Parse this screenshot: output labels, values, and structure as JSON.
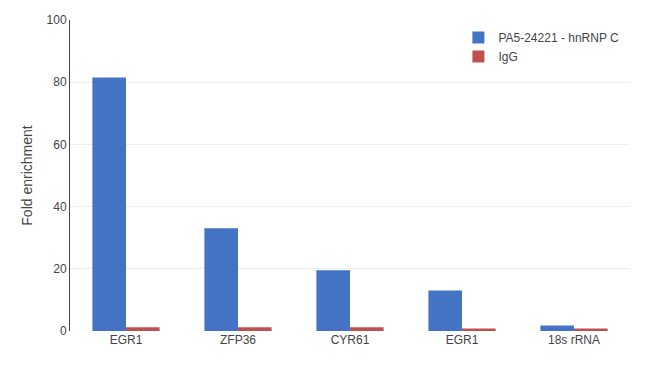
{
  "chart_data": {
    "type": "bar",
    "ylabel": "Fold enrichment",
    "categories": [
      "EGR1",
      "ZFP36",
      "CYR61",
      "EGR1",
      "18s rRNA"
    ],
    "series": [
      {
        "name": "PA5-24221 - hnRNP C",
        "color": "#4472C4",
        "values": [
          81.5,
          33.0,
          19.5,
          13.0,
          1.8
        ]
      },
      {
        "name": "IgG",
        "color": "#C0504D",
        "values": [
          1.2,
          1.2,
          1.2,
          0.8,
          0.8
        ]
      }
    ],
    "ylim": [
      0,
      100
    ],
    "yticks": [
      0,
      20,
      40,
      60,
      80,
      100
    ],
    "grid": true,
    "legend": "upper right"
  }
}
